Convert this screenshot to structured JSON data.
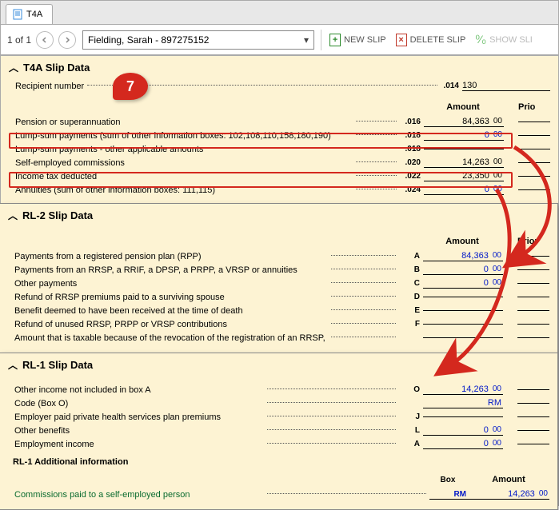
{
  "tab": {
    "label": "T4A"
  },
  "toolbar": {
    "page_label": "1 of 1",
    "dropdown_value": "Fielding, Sarah - 897275152",
    "new_slip": "NEW SLIP",
    "delete_slip": "DELETE SLIP",
    "show_slip": "SHOW SLI"
  },
  "callout": {
    "number": "7"
  },
  "t4a": {
    "title": "T4A Slip Data",
    "recipient_label": "Recipient number",
    "recipient_box": ".014",
    "recipient_value": "130",
    "col_amount": "Amount",
    "col_prior": "Prio",
    "rows": [
      {
        "label": "Pension or superannuation",
        "box": ".016",
        "amt": "84,363",
        "cents": "00",
        "black": true
      },
      {
        "label": "Lump-sum payments (sum of other information boxes: 102,108,110,158,180,190)",
        "box": ".018",
        "amt": "0",
        "cents": "00"
      },
      {
        "label": "Lump-sum payments - other applicable amounts",
        "box": ".018",
        "amt": "",
        "cents": ""
      },
      {
        "label": "Self-employed commissions",
        "box": ".020",
        "amt": "14,263",
        "cents": "00",
        "black": true
      },
      {
        "label": "Income tax deducted",
        "box": ".022",
        "amt": "23,350",
        "cents": "00",
        "black": true
      },
      {
        "label": "Annuities (sum of other information boxes: 111,115)",
        "box": ".024",
        "amt": "0",
        "cents": "00"
      }
    ]
  },
  "rl2": {
    "title": "RL-2 Slip Data",
    "col_amount": "Amount",
    "col_prior": "Prior",
    "rows": [
      {
        "label": "Payments from a registered pension plan (RPP)",
        "box": "A",
        "amt": "84,363",
        "cents": "00"
      },
      {
        "label": "Payments from an RRSP, a RRIF, a DPSP, a PRPP, a VRSP or annuities",
        "box": "B",
        "amt": "0",
        "cents": "00"
      },
      {
        "label": "Other payments",
        "box": "C",
        "amt": "0",
        "cents": "00"
      },
      {
        "label": "Refund of RRSP premiums paid to a surviving spouse",
        "box": "D",
        "amt": "",
        "cents": ""
      },
      {
        "label": "Benefit deemed to have been received at the time of death",
        "box": "E",
        "amt": "",
        "cents": ""
      },
      {
        "label": "Refund of unused RRSP, PRPP or VRSP contributions",
        "box": "F",
        "amt": "",
        "cents": ""
      },
      {
        "label": "Amount that is taxable because of the revocation of the registration of an RRSP, a RRIF, or an",
        "box": "",
        "amt": "",
        "cents": ""
      }
    ]
  },
  "rl1": {
    "title": "RL-1 Slip Data",
    "rows": [
      {
        "label": "Other income not included in box A",
        "box": "O",
        "amt": "14,263",
        "cents": "00"
      },
      {
        "label": "Code (Box O)",
        "box": "",
        "amt": "RM",
        "cents": "",
        "code": true
      },
      {
        "label": "Employer paid private health services plan premiums",
        "box": "J",
        "amt": "",
        "cents": ""
      },
      {
        "label": "Other benefits",
        "box": "L",
        "amt": "0",
        "cents": "00"
      },
      {
        "label": "Employment income",
        "box": "A",
        "amt": "0",
        "cents": "00"
      }
    ],
    "addl_title": "RL-1 Additional information",
    "addl_col_box": "Box",
    "addl_col_amount": "Amount",
    "addl_row": {
      "label": "Commissions paid to a self-employed person",
      "box": "RM",
      "amt": "14,263",
      "cents": "00"
    }
  }
}
